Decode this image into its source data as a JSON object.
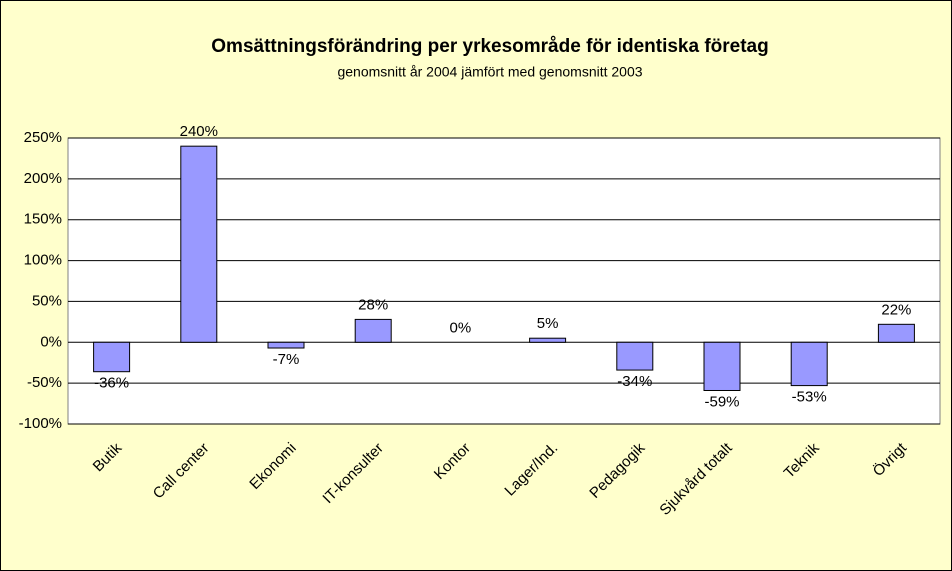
{
  "chart_data": {
    "type": "bar",
    "title": "Omsättningsförändring per yrkesområde för identiska företag",
    "subtitle": "genomsnitt år 2004 jämfört med genomsnitt 2003",
    "categories": [
      "Butik",
      "Call center",
      "Ekonomi",
      "IT-konsulter",
      "Kontor",
      "Lager/Ind.",
      "Pedagogik",
      "Sjukvård totalt",
      "Teknik",
      "Övrigt"
    ],
    "values": [
      -36,
      240,
      -7,
      28,
      0,
      5,
      -34,
      -59,
      -53,
      22
    ],
    "value_labels": [
      "-36%",
      "240%",
      "-7%",
      "28%",
      "0%",
      "5%",
      "-34%",
      "-59%",
      "-53%",
      "22%"
    ],
    "color": "#9999ff",
    "ylim": [
      -100,
      250
    ],
    "yticks": [
      {
        "value": -100,
        "label": "-100%"
      },
      {
        "value": -50,
        "label": "-50%"
      },
      {
        "value": 0,
        "label": "0%"
      },
      {
        "value": 50,
        "label": "50%"
      },
      {
        "value": 100,
        "label": "100%"
      },
      {
        "value": 150,
        "label": "150%"
      },
      {
        "value": 200,
        "label": "200%"
      },
      {
        "value": 250,
        "label": "250%"
      }
    ],
    "grid": true
  }
}
